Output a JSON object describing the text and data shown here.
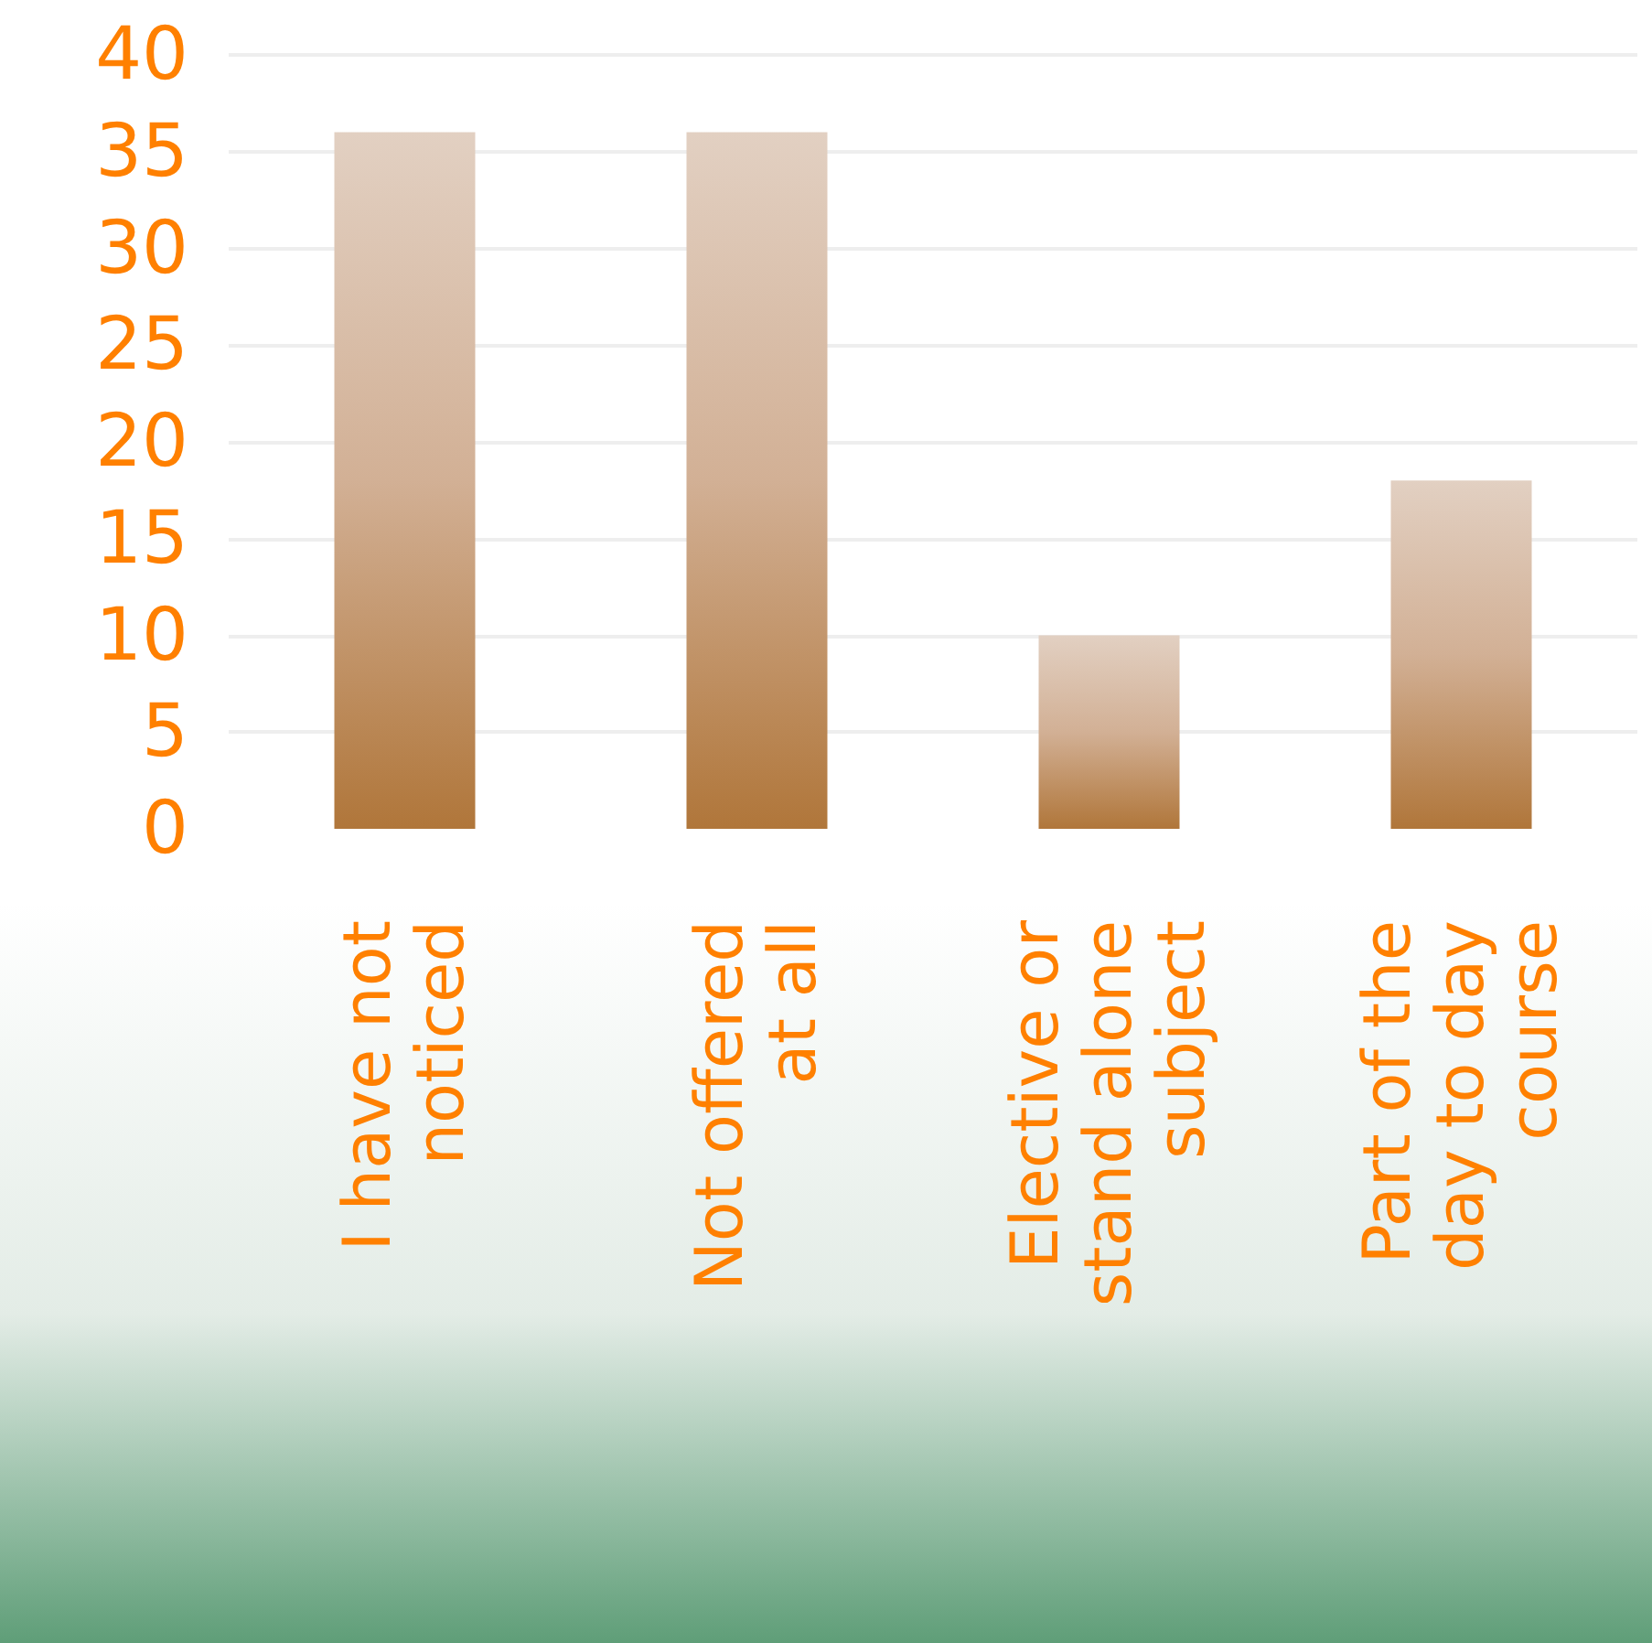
{
  "chart_data": {
    "type": "bar",
    "categories": [
      "I have not noticed",
      "Not offered at all",
      "Elective or stand alone subject",
      "Part of the day to day course"
    ],
    "values": [
      36,
      36,
      10,
      18
    ],
    "color": "#d2b095",
    "ylim": [
      0,
      40
    ],
    "yticks": [
      0,
      5,
      10,
      15,
      20,
      25,
      30,
      35,
      40
    ],
    "grid": "y"
  }
}
